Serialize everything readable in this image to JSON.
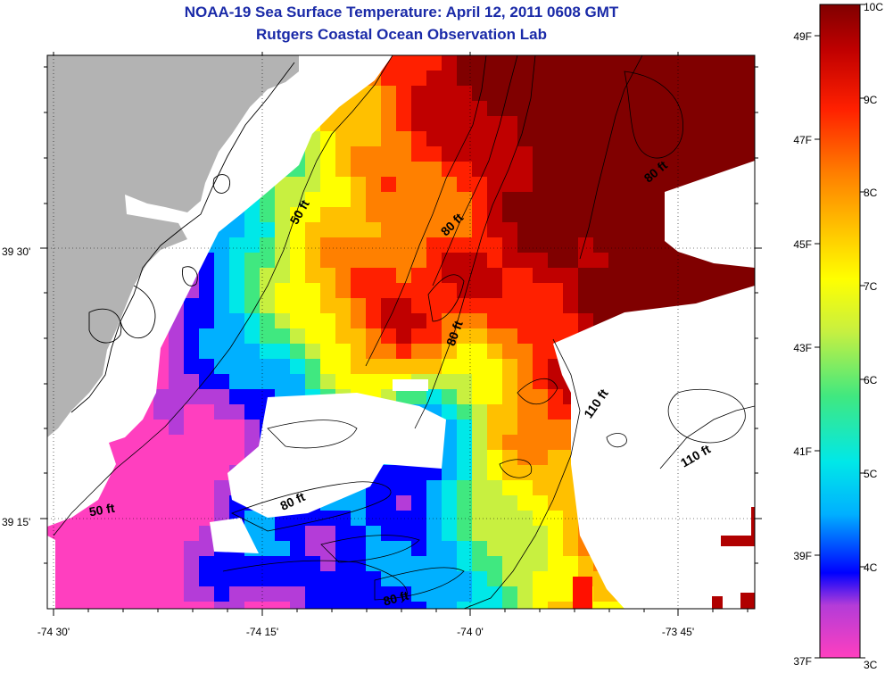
{
  "header": {
    "title": "NOAA-19 Sea Surface Temperature:  April 12, 2011 0608 GMT",
    "subtitle": "Rutgers Coastal Ocean Observation Lab"
  },
  "map": {
    "lon_labels": [
      "-74 30'",
      "-74 15'",
      "-74 0'",
      "-73 45'"
    ],
    "lat_labels": [
      "39 30'",
      "39 15'"
    ],
    "depth_labels": [
      {
        "text": "50 ft",
        "rot": -60
      },
      {
        "text": "80 ft",
        "rot": -40
      },
      {
        "text": "80 ft",
        "rot": -45
      },
      {
        "text": "80 ft",
        "rot": -70
      },
      {
        "text": "110 ft",
        "rot": -55
      },
      {
        "text": "110 ft",
        "rot": -30
      },
      {
        "text": "80 ft",
        "rot": -25
      },
      {
        "text": "50 ft",
        "rot": -10
      },
      {
        "text": "80 ft",
        "rot": -15
      }
    ],
    "land_color": "#b3b3b3",
    "nodata_color": "#ffffff"
  },
  "colorbar": {
    "celsius_labels": [
      "10C",
      "9C",
      "8C",
      "7C",
      "6C",
      "5C",
      "4C",
      "3C"
    ],
    "fahrenheit_labels": [
      "49F",
      "47F",
      "45F",
      "43F",
      "41F",
      "39F",
      "37F"
    ],
    "range_c": [
      3,
      10
    ],
    "palette": [
      "#ff3fbf",
      "#b43cd8",
      "#0000ff",
      "#00b0ff",
      "#00e8e8",
      "#40e880",
      "#c8f040",
      "#ffff00",
      "#ffc000",
      "#ff8000",
      "#ff2000",
      "#c00000",
      "#800000"
    ]
  }
}
